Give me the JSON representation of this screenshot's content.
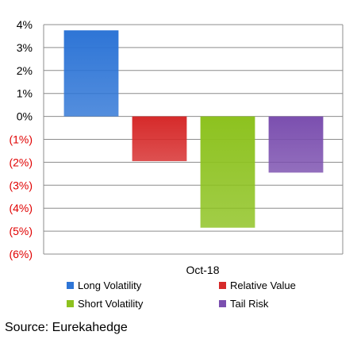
{
  "chart_data": {
    "type": "bar",
    "categories": [
      "Oct-18"
    ],
    "series": [
      {
        "name": "Long Volatility",
        "values": [
          3.75
        ],
        "color": "#2E75D6"
      },
      {
        "name": "Relative Value",
        "values": [
          -1.95
        ],
        "color": "#D62A2A"
      },
      {
        "name": "Short Volatility",
        "values": [
          -4.85
        ],
        "color": "#8DC21F"
      },
      {
        "name": "Tail Risk",
        "values": [
          -2.45
        ],
        "color": "#7B4FAF"
      }
    ],
    "ylim": [
      -6,
      4
    ],
    "yticks": [
      {
        "value": 4,
        "label": "4%"
      },
      {
        "value": 3,
        "label": "3%"
      },
      {
        "value": 2,
        "label": "2%"
      },
      {
        "value": 1,
        "label": "1%"
      },
      {
        "value": 0,
        "label": "0%"
      },
      {
        "value": -1,
        "label": "(1%)"
      },
      {
        "value": -2,
        "label": "(2%)"
      },
      {
        "value": -3,
        "label": "(3%)"
      },
      {
        "value": -4,
        "label": "(4%)"
      },
      {
        "value": -5,
        "label": "(5%)"
      },
      {
        "value": -6,
        "label": "(6%)"
      }
    ],
    "positive_tick_color": "#000000",
    "negative_tick_color": "#E00000",
    "grid": true,
    "legend_position": "bottom",
    "title": "",
    "xlabel": "",
    "ylabel": ""
  },
  "source": "Source: Eurekahedge"
}
